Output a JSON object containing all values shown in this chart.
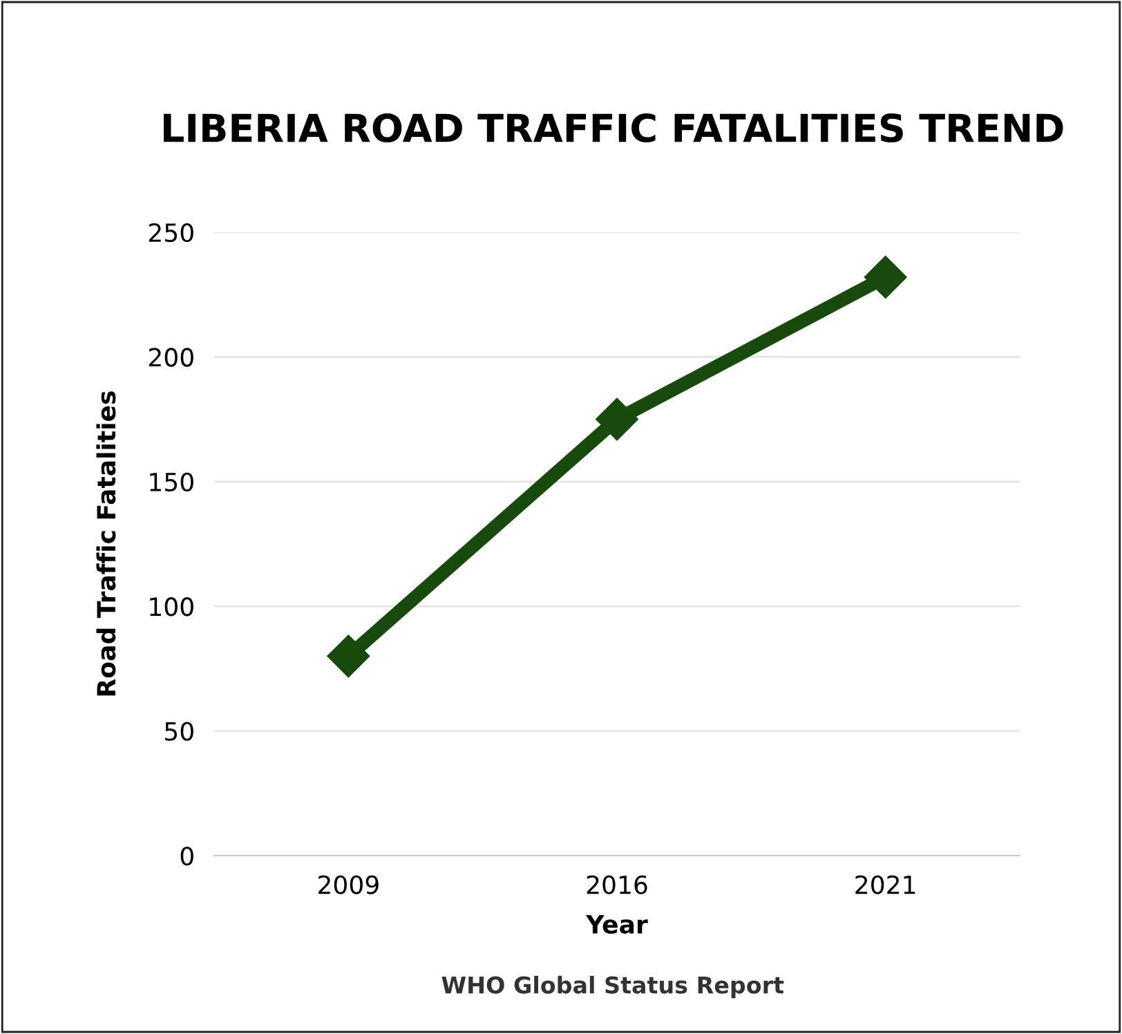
{
  "chart_data": {
    "type": "line",
    "title": "LIBERIA ROAD TRAFFIC FATALITIES TREND",
    "xlabel": "Year",
    "ylabel": "Road Traffic Fatalities",
    "categories": [
      "2009",
      "2016",
      "2021"
    ],
    "series": [
      {
        "color": "#174a0b",
        "values": [
          80,
          175,
          232
        ]
      }
    ],
    "ylim": [
      0,
      250
    ],
    "yticks": [
      0,
      50,
      100,
      150,
      200,
      250
    ],
    "grid": "y",
    "marker": "diamond",
    "line_style": "solid",
    "annotations": [
      "WHO Global Status Report"
    ]
  }
}
